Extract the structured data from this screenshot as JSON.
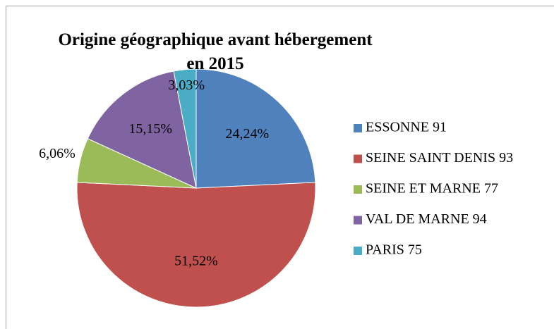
{
  "chart_data": {
    "type": "pie",
    "title": "Origine géographique avant hébergement en 2015",
    "categories": [
      "ESSONNE 91",
      "SEINE SAINT DENIS 93",
      "SEINE ET MARNE 77",
      "VAL DE MARNE 94",
      "PARIS 75"
    ],
    "values": [
      24.24,
      51.52,
      6.06,
      15.15,
      3.03
    ],
    "value_labels": [
      "24,24%",
      "51,52%",
      "6,06%",
      "15,15%",
      "3,03%"
    ],
    "colors": [
      "#4f81bd",
      "#c0504d",
      "#9bbb59",
      "#8064a2",
      "#4bacc6"
    ],
    "legend": "right"
  }
}
